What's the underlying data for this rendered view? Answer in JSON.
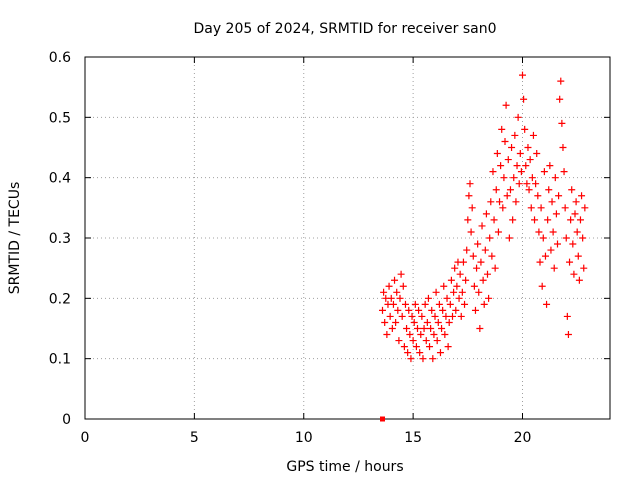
{
  "chart_data": {
    "type": "scatter",
    "title": "Day 205 of 2024, SRMTID for receiver san0",
    "xlabel": "GPS time / hours",
    "ylabel": "SRMTID / TECUs",
    "xlim": [
      0,
      24
    ],
    "ylim": [
      0,
      0.6
    ],
    "xticks": [
      0,
      5,
      10,
      15,
      20
    ],
    "yticks": [
      0,
      0.1,
      0.2,
      0.3,
      0.4,
      0.5,
      0.6
    ],
    "grid": true,
    "marker": "+",
    "color": "#ff0000",
    "outlier": {
      "x": 13.6,
      "y": 0.0,
      "marker": "square"
    },
    "series": [
      {
        "name": "SRMTID",
        "points": [
          [
            13.6,
            0.18
          ],
          [
            13.65,
            0.21
          ],
          [
            13.7,
            0.16
          ],
          [
            13.75,
            0.2
          ],
          [
            13.8,
            0.14
          ],
          [
            13.85,
            0.19
          ],
          [
            13.9,
            0.22
          ],
          [
            13.95,
            0.17
          ],
          [
            14.0,
            0.2
          ],
          [
            14.05,
            0.15
          ],
          [
            14.1,
            0.19
          ],
          [
            14.15,
            0.23
          ],
          [
            14.2,
            0.16
          ],
          [
            14.25,
            0.21
          ],
          [
            14.3,
            0.18
          ],
          [
            14.35,
            0.13
          ],
          [
            14.4,
            0.2
          ],
          [
            14.45,
            0.24
          ],
          [
            14.5,
            0.17
          ],
          [
            14.55,
            0.22
          ],
          [
            14.6,
            0.12
          ],
          [
            14.65,
            0.19
          ],
          [
            14.7,
            0.15
          ],
          [
            14.75,
            0.11
          ],
          [
            14.8,
            0.18
          ],
          [
            14.85,
            0.14
          ],
          [
            14.9,
            0.1
          ],
          [
            14.95,
            0.17
          ],
          [
            15.0,
            0.13
          ],
          [
            15.05,
            0.16
          ],
          [
            15.1,
            0.19
          ],
          [
            15.15,
            0.12
          ],
          [
            15.2,
            0.15
          ],
          [
            15.25,
            0.18
          ],
          [
            15.3,
            0.11
          ],
          [
            15.35,
            0.14
          ],
          [
            15.4,
            0.17
          ],
          [
            15.45,
            0.1
          ],
          [
            15.5,
            0.15
          ],
          [
            15.55,
            0.19
          ],
          [
            15.6,
            0.13
          ],
          [
            15.65,
            0.16
          ],
          [
            15.7,
            0.2
          ],
          [
            15.75,
            0.12
          ],
          [
            15.8,
            0.15
          ],
          [
            15.85,
            0.18
          ],
          [
            15.9,
            0.1
          ],
          [
            15.95,
            0.14
          ],
          [
            16.0,
            0.17
          ],
          [
            16.05,
            0.21
          ],
          [
            16.1,
            0.13
          ],
          [
            16.15,
            0.16
          ],
          [
            16.2,
            0.19
          ],
          [
            16.25,
            0.11
          ],
          [
            16.3,
            0.15
          ],
          [
            16.35,
            0.18
          ],
          [
            16.4,
            0.22
          ],
          [
            16.45,
            0.14
          ],
          [
            16.5,
            0.17
          ],
          [
            16.55,
            0.2
          ],
          [
            16.6,
            0.12
          ],
          [
            16.65,
            0.16
          ],
          [
            16.7,
            0.19
          ],
          [
            16.75,
            0.23
          ],
          [
            16.8,
            0.17
          ],
          [
            16.85,
            0.21
          ],
          [
            16.9,
            0.25
          ],
          [
            16.95,
            0.18
          ],
          [
            17.0,
            0.22
          ],
          [
            17.05,
            0.26
          ],
          [
            17.1,
            0.2
          ],
          [
            17.15,
            0.24
          ],
          [
            17.2,
            0.17
          ],
          [
            17.25,
            0.21
          ],
          [
            17.3,
            0.26
          ],
          [
            17.35,
            0.19
          ],
          [
            17.4,
            0.23
          ],
          [
            17.45,
            0.28
          ],
          [
            17.5,
            0.33
          ],
          [
            17.55,
            0.37
          ],
          [
            17.6,
            0.39
          ],
          [
            17.65,
            0.31
          ],
          [
            17.7,
            0.35
          ],
          [
            17.75,
            0.27
          ],
          [
            17.8,
            0.22
          ],
          [
            17.85,
            0.18
          ],
          [
            17.9,
            0.25
          ],
          [
            17.95,
            0.29
          ],
          [
            18.0,
            0.21
          ],
          [
            18.05,
            0.15
          ],
          [
            18.1,
            0.26
          ],
          [
            18.15,
            0.32
          ],
          [
            18.2,
            0.23
          ],
          [
            18.25,
            0.19
          ],
          [
            18.3,
            0.28
          ],
          [
            18.35,
            0.34
          ],
          [
            18.4,
            0.24
          ],
          [
            18.45,
            0.2
          ],
          [
            18.5,
            0.3
          ],
          [
            18.55,
            0.36
          ],
          [
            18.6,
            0.27
          ],
          [
            18.65,
            0.41
          ],
          [
            18.7,
            0.33
          ],
          [
            18.75,
            0.25
          ],
          [
            18.8,
            0.38
          ],
          [
            18.85,
            0.44
          ],
          [
            18.9,
            0.31
          ],
          [
            18.95,
            0.36
          ],
          [
            19.0,
            0.42
          ],
          [
            19.05,
            0.48
          ],
          [
            19.1,
            0.35
          ],
          [
            19.15,
            0.4
          ],
          [
            19.2,
            0.46
          ],
          [
            19.25,
            0.52
          ],
          [
            19.3,
            0.37
          ],
          [
            19.35,
            0.43
          ],
          [
            19.4,
            0.3
          ],
          [
            19.45,
            0.38
          ],
          [
            19.5,
            0.45
          ],
          [
            19.55,
            0.33
          ],
          [
            19.6,
            0.4
          ],
          [
            19.65,
            0.47
          ],
          [
            19.7,
            0.36
          ],
          [
            19.75,
            0.42
          ],
          [
            19.8,
            0.5
          ],
          [
            19.85,
            0.39
          ],
          [
            19.9,
            0.44
          ],
          [
            19.95,
            0.41
          ],
          [
            20.0,
            0.57
          ],
          [
            20.05,
            0.53
          ],
          [
            20.1,
            0.48
          ],
          [
            20.15,
            0.42
          ],
          [
            20.2,
            0.39
          ],
          [
            20.25,
            0.45
          ],
          [
            20.3,
            0.38
          ],
          [
            20.35,
            0.43
          ],
          [
            20.4,
            0.35
          ],
          [
            20.45,
            0.4
          ],
          [
            20.5,
            0.47
          ],
          [
            20.55,
            0.33
          ],
          [
            20.6,
            0.39
          ],
          [
            20.65,
            0.44
          ],
          [
            20.7,
            0.37
          ],
          [
            20.75,
            0.31
          ],
          [
            20.8,
            0.26
          ],
          [
            20.85,
            0.35
          ],
          [
            20.9,
            0.22
          ],
          [
            20.95,
            0.3
          ],
          [
            21.0,
            0.41
          ],
          [
            21.05,
            0.27
          ],
          [
            21.1,
            0.19
          ],
          [
            21.15,
            0.33
          ],
          [
            21.2,
            0.38
          ],
          [
            21.25,
            0.42
          ],
          [
            21.3,
            0.28
          ],
          [
            21.35,
            0.36
          ],
          [
            21.4,
            0.31
          ],
          [
            21.45,
            0.25
          ],
          [
            21.5,
            0.4
          ],
          [
            21.55,
            0.34
          ],
          [
            21.6,
            0.29
          ],
          [
            21.65,
            0.37
          ],
          [
            21.7,
            0.53
          ],
          [
            21.75,
            0.56
          ],
          [
            21.8,
            0.49
          ],
          [
            21.85,
            0.45
          ],
          [
            21.9,
            0.41
          ],
          [
            21.95,
            0.35
          ],
          [
            22.0,
            0.3
          ],
          [
            22.05,
            0.17
          ],
          [
            22.1,
            0.14
          ],
          [
            22.15,
            0.26
          ],
          [
            22.2,
            0.33
          ],
          [
            22.25,
            0.38
          ],
          [
            22.3,
            0.29
          ],
          [
            22.35,
            0.24
          ],
          [
            22.4,
            0.34
          ],
          [
            22.45,
            0.36
          ],
          [
            22.5,
            0.31
          ],
          [
            22.55,
            0.27
          ],
          [
            22.6,
            0.23
          ],
          [
            22.65,
            0.33
          ],
          [
            22.7,
            0.37
          ],
          [
            22.75,
            0.3
          ],
          [
            22.8,
            0.25
          ],
          [
            22.85,
            0.35
          ]
        ]
      }
    ]
  }
}
